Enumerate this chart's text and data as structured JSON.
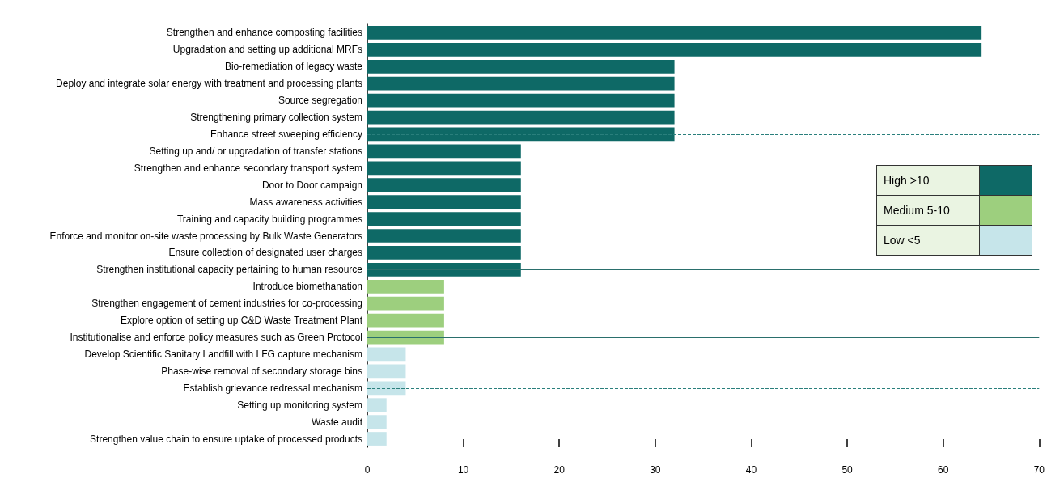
{
  "chart_data": {
    "type": "bar",
    "orientation": "horizontal",
    "stacked": true,
    "categories": [
      "Strengthen and enhance composting facilities",
      "Upgradation and setting up additional MRFs",
      "Bio-remediation of legacy waste",
      "Deploy and integrate solar energy with treatment and processing plants",
      "Source segregation",
      "Strengthening primary collection system",
      "Enhance street sweeping efficiency",
      "Setting up and/ or upgradation of transfer stations",
      "Strengthen and enhance secondary transport system",
      "Door to Door campaign",
      "Mass awareness activities",
      "Training and capacity building programmes",
      "Enforce and monitor on-site waste processing by Bulk Waste Generators",
      "Ensure collection of designated user charges",
      "Strengthen institutional capacity pertaining to human resource",
      "Introduce biomethanation",
      "Strengthen engagement of cement industries for co-processing",
      "Explore option of setting up C&D Waste Treatment Plant",
      "Institutionalise and enforce policy measures such as Green Protocol",
      "Develop Scientific Sanitary Landfill with LFG capture mechanism",
      "Phase-wise removal of secondary storage bins",
      "Establish grievance redressal mechanism",
      "Setting up monitoring system",
      "Waste audit",
      "Strengthen value chain to ensure uptake of processed products"
    ],
    "series": [
      {
        "name": "High >10",
        "color": "#0e6966",
        "values": [
          64,
          64,
          32,
          32,
          32,
          32,
          32,
          16,
          16,
          16,
          16,
          16,
          16,
          16,
          16,
          null,
          null,
          null,
          null,
          null,
          null,
          null,
          null,
          null,
          null
        ]
      },
      {
        "name": "Medium 5-10",
        "color": "#9dcf7e",
        "values": [
          null,
          null,
          null,
          null,
          null,
          null,
          null,
          null,
          null,
          null,
          null,
          null,
          null,
          null,
          null,
          8,
          8,
          8,
          8,
          null,
          null,
          null,
          null,
          null,
          null
        ]
      },
      {
        "name": "Low <5",
        "color": "#c6e5ea",
        "values": [
          null,
          null,
          null,
          null,
          null,
          null,
          null,
          null,
          null,
          null,
          null,
          null,
          null,
          null,
          null,
          null,
          null,
          null,
          null,
          4,
          4,
          4,
          2,
          2,
          2
        ]
      }
    ],
    "xlim": [
      0,
      70
    ],
    "xticks": [
      0,
      10,
      20,
      30,
      40,
      50,
      60,
      70
    ],
    "grid": false,
    "legend": "right",
    "ref_lines": [
      {
        "axis": "y",
        "value": "Enhance street sweeping efficiency",
        "line_style": "dashed",
        "color": "#2a7f7c"
      },
      {
        "axis": "y",
        "value": "Strengthen institutional capacity pertaining to human resource",
        "line_style": "solid",
        "color": "#2a6f6c"
      },
      {
        "axis": "y",
        "value": "Institutionalise and enforce policy measures such as Green Protocol",
        "line_style": "solid",
        "color": "#2a6f6c"
      },
      {
        "axis": "y",
        "value": "Establish grievance redressal mechanism",
        "line_style": "dashed",
        "color": "#2a7f7c"
      }
    ]
  }
}
